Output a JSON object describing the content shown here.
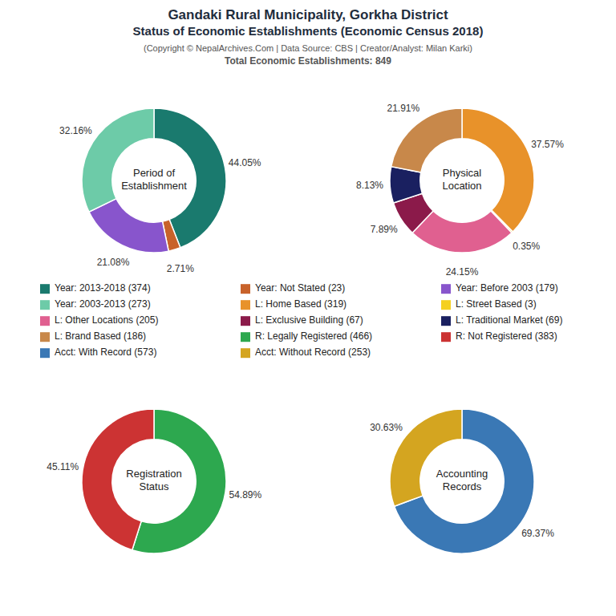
{
  "title": "Gandaki Rural Municipality, Gorkha District\nStatus of Economic Establishments (Economic Census 2018)",
  "subtitle": "(Copyright © NepalArchives.Com | Data Source: CBS | Creator/Analyst: Milan Karki)\nTotal Economic Establishments: 849",
  "chart_data": [
    {
      "type": "pie",
      "title": "Period of\nEstablishment",
      "categories": [
        "Year: 2013-2018 (374)",
        "Year: Not Stated (23)",
        "Year: Before 2003 (179)",
        "Year: 2003-2013 (273)"
      ],
      "values": [
        44.05,
        2.71,
        21.08,
        32.16
      ],
      "value_labels": [
        "44.05%",
        "2.71%",
        "21.08%",
        "32.16%"
      ],
      "colors": [
        "#1a7a6e",
        "#c8622a",
        "#8855cc",
        "#6dcba8"
      ],
      "data_labels": true,
      "legend": "center"
    },
    {
      "type": "pie",
      "title": "Physical\nLocation",
      "categories": [
        "L: Home Based (319)",
        "L: Street Based (3)",
        "L: Other Locations (205)",
        "L: Exclusive Building (67)",
        "L: Traditional Market (69)",
        "L: Brand Based (186)"
      ],
      "values": [
        37.57,
        0.35,
        24.15,
        7.89,
        8.13,
        21.91
      ],
      "value_labels": [
        "37.57%",
        "0.35%",
        "24.15%",
        "7.89%",
        "8.13%",
        "21.91%"
      ],
      "colors": [
        "#e8922a",
        "#f5d020",
        "#e06090",
        "#8b1a4a",
        "#1a2060",
        "#c8884a"
      ],
      "data_labels": true,
      "legend": "center"
    },
    {
      "type": "pie",
      "title": "Registration\nStatus",
      "categories": [
        "R: Legally Registered (466)",
        "R: Not Registered (383)"
      ],
      "values": [
        54.89,
        45.11
      ],
      "value_labels": [
        "54.89%",
        "45.11%"
      ],
      "colors": [
        "#2da84f",
        "#cc3333"
      ],
      "data_labels": true,
      "legend": "center"
    },
    {
      "type": "pie",
      "title": "Accounting\nRecords",
      "categories": [
        "Acct: With Record (573)",
        "Acct: Without Record (253)"
      ],
      "values": [
        69.37,
        30.63
      ],
      "value_labels": [
        "69.37%",
        "30.63%"
      ],
      "colors": [
        "#3a78b5",
        "#d4a520"
      ],
      "data_labels": true,
      "legend": "center"
    }
  ]
}
